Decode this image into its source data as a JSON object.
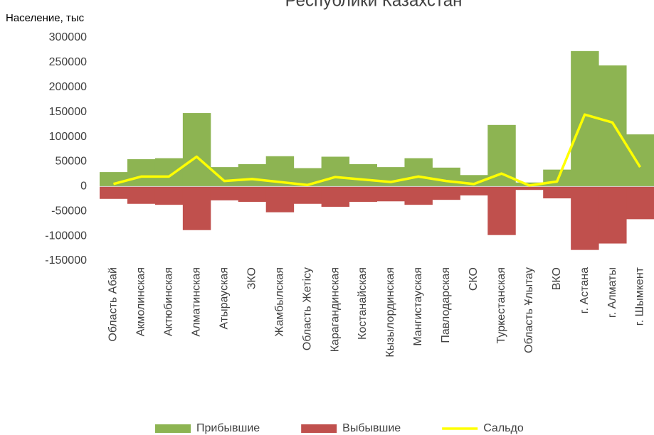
{
  "chart_data": {
    "type": "bar_line",
    "title": "Республики Казахстан",
    "y_label": "Население, тыс",
    "categories": [
      "Область Абай",
      "Акмолинская",
      "Актюбинская",
      "Алматинская",
      "Атырауская",
      "ЗКО",
      "Жамбылская",
      "Область Жетісу",
      "Карагандинская",
      "Костанайская",
      "Кызылординская",
      "Мангистауская",
      "Павлодарская",
      "СКО",
      "Туркестанская",
      "Область Ұлытау",
      "ВКО",
      "г. Астана",
      "г. Алматы",
      "г. Шымкент"
    ],
    "series": [
      {
        "name": "Прибывшие",
        "type": "bar",
        "color": "#8db452",
        "values": [
          29000,
          55000,
          57000,
          148000,
          39000,
          45000,
          61000,
          37000,
          60000,
          45000,
          39000,
          57000,
          38000,
          23000,
          124000,
          8000,
          34000,
          273000,
          244000,
          105000
        ]
      },
      {
        "name": "Выбывшие",
        "type": "bar",
        "color": "#c0504d",
        "values": [
          -25000,
          -35000,
          -37000,
          -88000,
          -28000,
          -31000,
          -52000,
          -35000,
          -41000,
          -31000,
          -30000,
          -37000,
          -27000,
          -18000,
          -98000,
          -7000,
          -24000,
          -128000,
          -115000,
          -66000
        ]
      },
      {
        "name": "Сальдо",
        "type": "line",
        "color": "#ffff00",
        "values": [
          5000,
          20000,
          20000,
          60000,
          11000,
          15000,
          9000,
          3000,
          19000,
          14000,
          9000,
          20000,
          11000,
          5000,
          26000,
          2000,
          10000,
          145000,
          129000,
          39000
        ]
      }
    ],
    "ylim": [
      -150000,
      300000
    ],
    "yticks": [
      -150000,
      -100000,
      -50000,
      0,
      50000,
      100000,
      150000,
      200000,
      250000,
      300000
    ],
    "legend": "bottom"
  }
}
